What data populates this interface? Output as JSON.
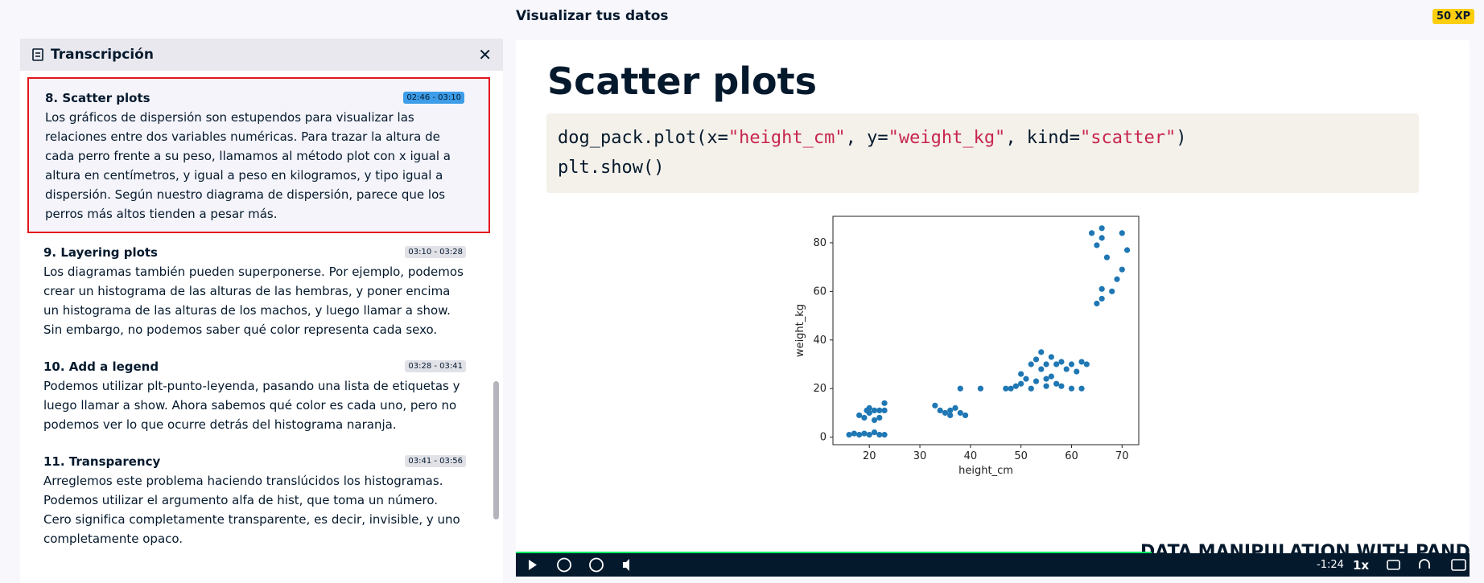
{
  "header": {
    "title": "Visualizar tus datos",
    "xp": "50 XP"
  },
  "transcript": {
    "title": "Transcripción",
    "items": [
      {
        "title": "8. Scatter plots",
        "time": "02:46 - 03:10",
        "text": "Los gráficos de dispersión son estupendos para visualizar las relaciones entre dos variables numéricas. Para trazar la altura de cada perro frente a su peso, llamamos al método plot con x igual a altura en centímetros, y igual a peso en kilogramos, y tipo igual a dispersión. Según nuestro diagrama de dispersión, parece que los perros más altos tienden a pesar más."
      },
      {
        "title": "9. Layering plots",
        "time": "03:10 - 03:28",
        "text": "Los diagramas también pueden superponerse. Por ejemplo, podemos crear un histograma de las alturas de las hembras, y poner encima un histograma de las alturas de los machos, y luego llamar a show. Sin embargo, no podemos saber qué color representa cada sexo."
      },
      {
        "title": "10. Add a legend",
        "time": "03:28 - 03:41",
        "text": "Podemos utilizar plt-punto-leyenda, pasando una lista de etiquetas y luego llamar a show. Ahora sabemos qué color es cada uno, pero no podemos ver lo que ocurre detrás del histograma naranja."
      },
      {
        "title": "11. Transparency",
        "time": "03:41 - 03:56",
        "text": "Arreglemos este problema haciendo translúcidos los histogramas. Podemos utilizar el argumento alfa de hist, que toma un número. Cero significa completamente transparente, es decir, invisible, y uno completamente opaco."
      }
    ]
  },
  "slide": {
    "title": "Scatter plots",
    "code": [
      [
        "dog_pack.plot(x=",
        "\"height_cm\"",
        ", y=",
        "\"weight_kg\"",
        ", kind=",
        "\"scatter\"",
        ")"
      ],
      [
        "plt.show()"
      ]
    ]
  },
  "chart_data": {
    "type": "scatter",
    "xlabel": "height_cm",
    "ylabel": "weight_kg",
    "color": "#1f77b4",
    "x": [
      16,
      17,
      18,
      19,
      20,
      21,
      22,
      23,
      18,
      19,
      19.5,
      20,
      21,
      22,
      21,
      23,
      23,
      20,
      22,
      33,
      34,
      35,
      36,
      37,
      38,
      39,
      38,
      36,
      42,
      47,
      48,
      49,
      50,
      50,
      51,
      52,
      52,
      53,
      54,
      54,
      55,
      55,
      56,
      57,
      57,
      58,
      59,
      60,
      60,
      61,
      62,
      62,
      63,
      53,
      55,
      56,
      58,
      64,
      65,
      66,
      66,
      67,
      65,
      66,
      68,
      69,
      70,
      70,
      71,
      66
    ],
    "values": [
      1,
      1.5,
      1,
      1.5,
      1,
      2,
      1,
      1,
      9,
      8,
      11,
      10,
      11,
      8,
      7,
      14,
      11,
      12,
      11,
      13,
      11,
      10,
      9,
      12,
      10,
      9,
      20,
      11,
      20,
      20,
      20,
      21,
      22,
      26,
      24,
      20,
      30,
      32,
      35,
      28,
      30,
      24,
      33,
      30,
      22,
      31,
      28,
      30,
      20,
      27,
      20,
      31,
      30,
      23,
      21,
      25,
      21,
      84,
      79,
      86,
      61,
      74,
      55,
      57,
      60,
      65,
      69,
      84,
      77,
      82
    ],
    "xlim": [
      12.8,
      73.3
    ],
    "ylim": [
      -3.1,
      90.9
    ],
    "xticks": [
      20,
      30,
      40,
      50,
      60,
      70
    ],
    "yticks": [
      0,
      20,
      40,
      60,
      80
    ]
  },
  "player": {
    "time": "-1:24",
    "speed": "1x",
    "footer": "DATA MANIPULATION WITH PANDAS"
  }
}
